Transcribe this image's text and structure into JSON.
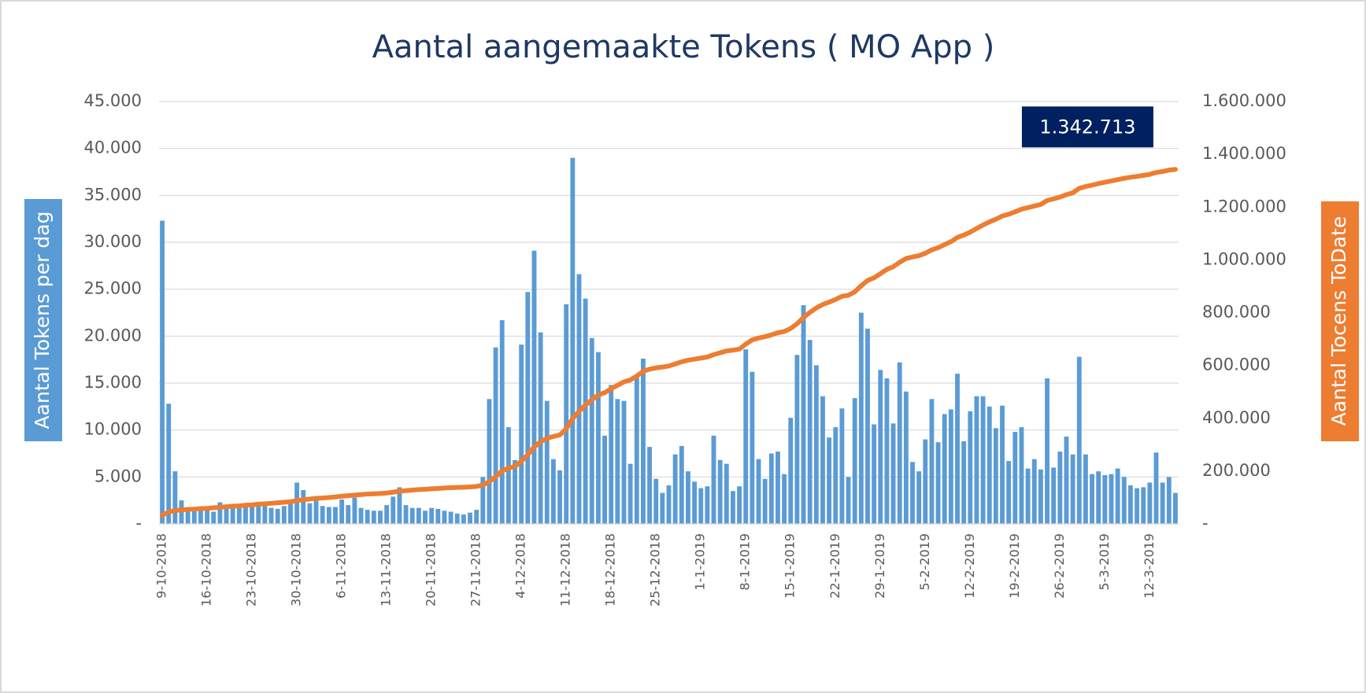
{
  "chart_data": {
    "type": "bar",
    "title": "Aantal aangemaakte Tokens ( MO App )",
    "y_label": "Aantal Tokens per dag",
    "y2_label": "Aantal Tocens ToDate",
    "categories": [
      "9-10-2018",
      null,
      null,
      null,
      null,
      null,
      null,
      "16-10-2018",
      null,
      null,
      null,
      null,
      null,
      null,
      "23-10-2018",
      null,
      null,
      null,
      null,
      null,
      null,
      "30-10-2018",
      null,
      null,
      null,
      null,
      null,
      null,
      "6-11-2018",
      null,
      null,
      null,
      null,
      null,
      null,
      "13-11-2018",
      null,
      null,
      null,
      null,
      null,
      null,
      "20-11-2018",
      null,
      null,
      null,
      null,
      null,
      null,
      "27-11-2018",
      null,
      null,
      null,
      null,
      null,
      null,
      "4-12-2018",
      null,
      null,
      null,
      null,
      null,
      null,
      "11-12-2018",
      null,
      null,
      null,
      null,
      null,
      null,
      "18-12-2018",
      null,
      null,
      null,
      null,
      null,
      null,
      "25-12-2018",
      null,
      null,
      null,
      null,
      null,
      null,
      "1-1-2019",
      null,
      null,
      null,
      null,
      null,
      null,
      "8-1-2019",
      null,
      null,
      null,
      null,
      null,
      null,
      "15-1-2019",
      null,
      null,
      null,
      null,
      null,
      null,
      "22-1-2019",
      null,
      null,
      null,
      null,
      null,
      null,
      "29-1-2019",
      null,
      null,
      null,
      null,
      null,
      null,
      "5-2-2019",
      null,
      null,
      null,
      null,
      null,
      null,
      "12-2-2019",
      null,
      null,
      null,
      null,
      null,
      null,
      "19-2-2019",
      null,
      null,
      null,
      null,
      null,
      null,
      "26-2-2019",
      null,
      null,
      null,
      null,
      null,
      null,
      "5-3-2019",
      null,
      null,
      null,
      null,
      null,
      null,
      "12-3-2019",
      null,
      null,
      null,
      null
    ],
    "series": [
      {
        "type": "bar",
        "color": "#5b9bd5",
        "values": [
          32300,
          12800,
          5600,
          2500,
          1500,
          1600,
          1500,
          1500,
          1300,
          2300,
          2000,
          1700,
          1800,
          2100,
          1800,
          2200,
          1900,
          1700,
          1600,
          1900,
          2200,
          4400,
          3600,
          2200,
          2500,
          1900,
          1800,
          1800,
          2600,
          2000,
          2800,
          1700,
          1500,
          1400,
          1400,
          2000,
          2900,
          3900,
          2000,
          1700,
          1700,
          1400,
          1700,
          1600,
          1400,
          1300,
          1100,
          1000,
          1200,
          1500,
          5000,
          13300,
          18800,
          21700,
          10300,
          6800,
          19100,
          24700,
          29100,
          20400,
          13100,
          6900,
          5700,
          23400,
          39000,
          26600,
          24000,
          19800,
          18300,
          9400,
          14800,
          13300,
          13100,
          6400,
          15600,
          17600,
          8200,
          4800,
          3300,
          4100,
          7400,
          8300,
          5600,
          4500,
          3800,
          4000,
          9400,
          6800,
          6400,
          3500,
          4000,
          18600,
          16200,
          6900,
          4800,
          7500,
          7700,
          5300,
          11300,
          18000,
          23300,
          19600,
          16900,
          13600,
          9200,
          10300,
          12300,
          5000,
          13400,
          22500,
          20800,
          10600,
          16400,
          15500,
          10700,
          17200,
          14100,
          6600,
          5600,
          9000,
          13300,
          8700,
          11700,
          12200,
          16000,
          8800,
          12000,
          13600,
          13600,
          12500,
          10200,
          12600,
          6700,
          9800,
          10300,
          5900,
          6900,
          5800,
          15500,
          6000,
          7700,
          9300,
          7400,
          17800,
          7400,
          5300,
          5600,
          5200,
          5300,
          5900,
          5000,
          4100,
          3800,
          3900,
          4400,
          7600,
          4400,
          5000,
          3300
        ]
      },
      {
        "type": "line",
        "axis": "y2",
        "color": "#ed7d31",
        "values": [
          32000,
          45000,
          51000,
          53000,
          55000,
          56000,
          58000,
          59000,
          61000,
          63000,
          65000,
          67000,
          68000,
          71000,
          72000,
          75000,
          76000,
          78000,
          80000,
          82000,
          84000,
          88000,
          92000,
          94000,
          97000,
          98000,
          100000,
          102000,
          105000,
          107000,
          109000,
          111000,
          113000,
          114000,
          115000,
          117000,
          120000,
          124000,
          126000,
          128000,
          130000,
          131000,
          133000,
          134000,
          136000,
          137000,
          138000,
          139000,
          140000,
          142000,
          147000,
          160000,
          179000,
          201000,
          211000,
          218000,
          237000,
          262000,
          291000,
          311000,
          324000,
          331000,
          337000,
          360000,
          399000,
          426000,
          450000,
          470000,
          488000,
          497000,
          512000,
          525000,
          538000,
          545000,
          560000,
          578000,
          586000,
          591000,
          594000,
          598000,
          606000,
          614000,
          620000,
          624000,
          628000,
          632000,
          641000,
          648000,
          655000,
          658000,
          662000,
          681000,
          697000,
          704000,
          709000,
          716000,
          724000,
          729000,
          740000,
          758000,
          782000,
          801000,
          818000,
          831000,
          840000,
          850000,
          862000,
          866000,
          879000,
          902000,
          922000,
          932000,
          948000,
          964000,
          974000,
          991000,
          1005000,
          1011000,
          1016000,
          1025000,
          1038000,
          1046000,
          1058000,
          1069000,
          1085000,
          1094000,
          1105000,
          1119000,
          1132000,
          1144000,
          1154000,
          1166000,
          1173000,
          1182000,
          1192000,
          1198000,
          1204000,
          1210000,
          1225000,
          1231000,
          1238000,
          1247000,
          1254000,
          1271000,
          1278000,
          1283000,
          1289000,
          1294000,
          1299000,
          1304000,
          1309000,
          1313000,
          1316000,
          1320000,
          1324000,
          1331000,
          1335000,
          1340000,
          1342713
        ],
        "value_labels": [
          null,
          null,
          null,
          null,
          null,
          null,
          null,
          null,
          null,
          null,
          null,
          null,
          null,
          null,
          null,
          null,
          null,
          null,
          null,
          null,
          null,
          null,
          null,
          null,
          null,
          null,
          null,
          null,
          null,
          null,
          null,
          null,
          null,
          null,
          null,
          null,
          null,
          null,
          null,
          null,
          null,
          null,
          null,
          null,
          null,
          null,
          null,
          null,
          null,
          null,
          null,
          null,
          null,
          null,
          null,
          null,
          null,
          null,
          null,
          null,
          null,
          null,
          null,
          null,
          null,
          null,
          null,
          null,
          null,
          null,
          null,
          null,
          null,
          null,
          null,
          null,
          null,
          null,
          null,
          null,
          null,
          null,
          null,
          null,
          null,
          null,
          null,
          null,
          null,
          null,
          null,
          null,
          null,
          null,
          null,
          null,
          null,
          null,
          null,
          null,
          null,
          null,
          null,
          null,
          null,
          null,
          null,
          null,
          null,
          null,
          null,
          null,
          null,
          null,
          null,
          null,
          null,
          null,
          null,
          null,
          null,
          null,
          null,
          null,
          null,
          null,
          null,
          null,
          null,
          null,
          null,
          null,
          null,
          null,
          null,
          null,
          null,
          null,
          null,
          null,
          null,
          null,
          null,
          null,
          null,
          null,
          null,
          null,
          null,
          null,
          null,
          null,
          null,
          null,
          null,
          null,
          null,
          null,
          "1.342.713"
        ]
      }
    ],
    "ylim": [
      0,
      45000
    ],
    "yticks": [
      {
        "value": 0,
        "label": "-"
      },
      {
        "value": 5000,
        "label": "5.000"
      },
      {
        "value": 10000,
        "label": "10.000"
      },
      {
        "value": 15000,
        "label": "15.000"
      },
      {
        "value": 20000,
        "label": "20.000"
      },
      {
        "value": 25000,
        "label": "25.000"
      },
      {
        "value": 30000,
        "label": "30.000"
      },
      {
        "value": 35000,
        "label": "35.000"
      },
      {
        "value": 40000,
        "label": "40.000"
      },
      {
        "value": 45000,
        "label": "45.000"
      }
    ],
    "y2lim": [
      0,
      1600000
    ],
    "y2ticks": [
      {
        "value": 0,
        "label": "-"
      },
      {
        "value": 200000,
        "label": "200.000"
      },
      {
        "value": 400000,
        "label": "400.000"
      },
      {
        "value": 600000,
        "label": "600.000"
      },
      {
        "value": 800000,
        "label": "800.000"
      },
      {
        "value": 1000000,
        "label": "1.000.000"
      },
      {
        "value": 1200000,
        "label": "1.200.000"
      },
      {
        "value": 1400000,
        "label": "1.400.000"
      },
      {
        "value": 1600000,
        "label": "1.600.000"
      }
    ],
    "grid": true,
    "label_box_color": "#002060"
  }
}
